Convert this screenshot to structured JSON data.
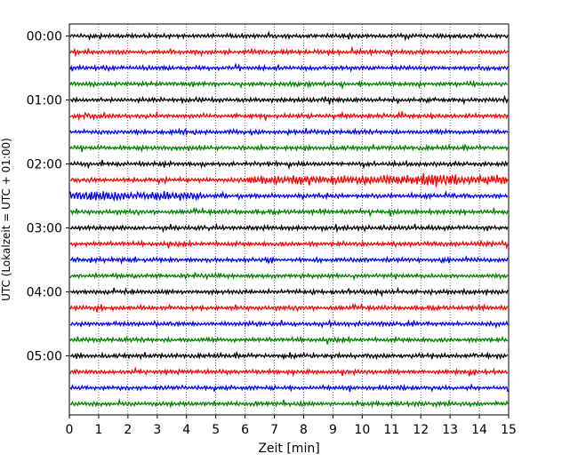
{
  "chart_data": {
    "type": "line",
    "xlabel": "Zeit  [min]",
    "ylabel": "UTC (Lokalzeit = UTC + 01:00)",
    "xlim": [
      0,
      15
    ],
    "x_ticks": [
      "0",
      "1",
      "2",
      "3",
      "4",
      "5",
      "6",
      "7",
      "8",
      "9",
      "10",
      "11",
      "12",
      "13",
      "14",
      "15"
    ],
    "y_ticks": [
      "00:00",
      "01:00",
      "02:00",
      "03:00",
      "04:00",
      "05:00"
    ],
    "vertical_grid": true,
    "trace_colors": [
      "#000000",
      "#ff0000",
      "#0000ff",
      "#008000"
    ],
    "traces_per_hour": 4,
    "trace_count": 24,
    "minutes_per_trace": 15,
    "noisy_traces": [
      {
        "index": 9,
        "from_min": 6,
        "to_min": 15,
        "note": "larger oscillations up to ~13 min"
      },
      {
        "index": 10,
        "from_min": 0,
        "to_min": 4.5,
        "note": "larger oscillations"
      }
    ]
  }
}
